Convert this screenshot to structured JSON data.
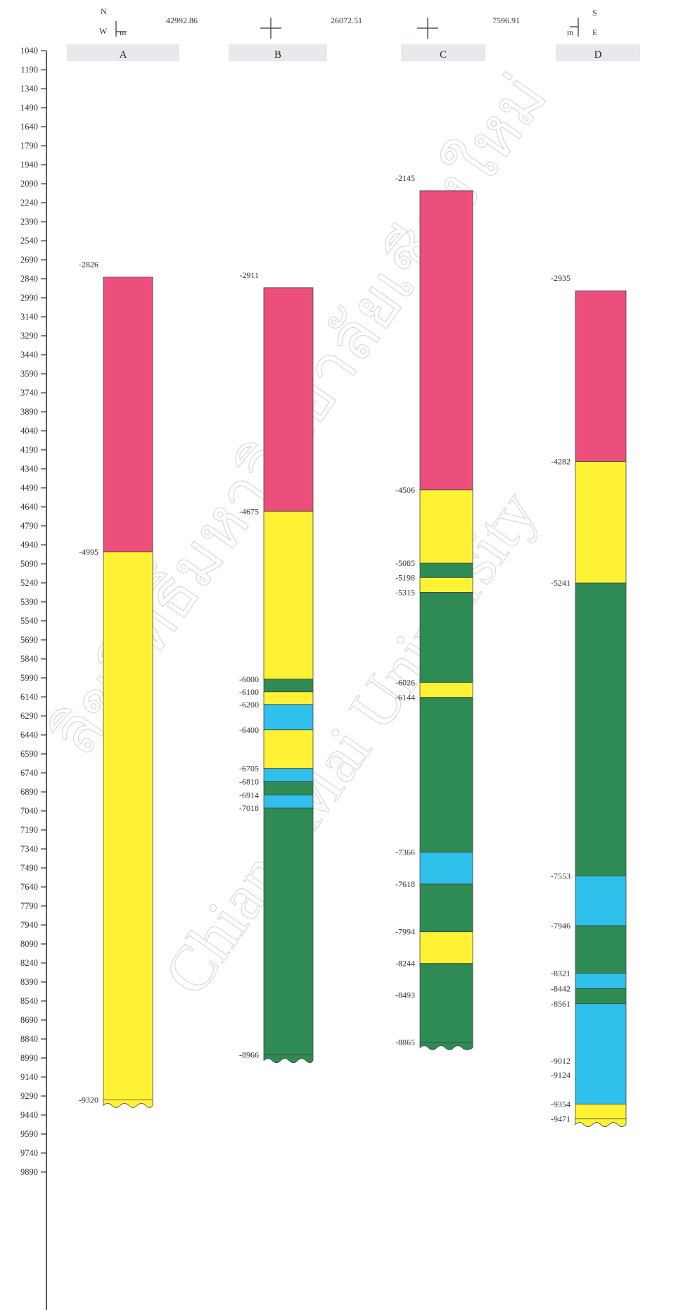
{
  "header": {
    "nw": {
      "n": "N",
      "w": "W",
      "unit": "m"
    },
    "coords": [
      "42992.86",
      "26072.51",
      "7596.91"
    ],
    "se": {
      "s": "S",
      "e": "E",
      "unit": "m"
    }
  },
  "depth_scale": {
    "ticks": [
      "1040",
      "1190",
      "1340",
      "1490",
      "1640",
      "1790",
      "1940",
      "2090",
      "2240",
      "2390",
      "2540",
      "2690",
      "2840",
      "2990",
      "3140",
      "3290",
      "3440",
      "3590",
      "3740",
      "3890",
      "4040",
      "4190",
      "4340",
      "4490",
      "4640",
      "4790",
      "4940",
      "5090",
      "5240",
      "5390",
      "5540",
      "5690",
      "5840",
      "5990",
      "6140",
      "6290",
      "6440",
      "6590",
      "6740",
      "6890",
      "7040",
      "7190",
      "7340",
      "7490",
      "7640",
      "7790",
      "7940",
      "8090",
      "8240",
      "8390",
      "8540",
      "8690",
      "8840",
      "8990",
      "9140",
      "9290",
      "9440",
      "9590",
      "9740",
      "9890"
    ]
  },
  "colors": {
    "pink": "#ec4f7c",
    "yellow": "#fff235",
    "green": "#2e8b53",
    "blue": "#2fc0ec"
  },
  "watermark": {
    "line1": "ลิขสิทธิ์มหาวิทยาลัยเชียงใหม่",
    "line2": "Chiang Mai University"
  },
  "wells": [
    {
      "name": "A",
      "top_label": "-2826",
      "bottom_label": "-9320",
      "segments": [
        {
          "top": 2826,
          "bottom": 4995,
          "color": "pink"
        },
        {
          "top": 4995,
          "bottom": 9320,
          "color": "yellow"
        }
      ],
      "labels": [
        "-4995"
      ]
    },
    {
      "name": "B",
      "top_label": "-2911",
      "bottom_label": "-8966",
      "segments": [
        {
          "top": 2911,
          "bottom": 4675,
          "color": "pink"
        },
        {
          "top": 4675,
          "bottom": 6000,
          "color": "yellow"
        },
        {
          "top": 6000,
          "bottom": 6100,
          "color": "green"
        },
        {
          "top": 6100,
          "bottom": 6200,
          "color": "yellow"
        },
        {
          "top": 6200,
          "bottom": 6400,
          "color": "blue"
        },
        {
          "top": 6400,
          "bottom": 6705,
          "color": "yellow"
        },
        {
          "top": 6705,
          "bottom": 6810,
          "color": "blue"
        },
        {
          "top": 6810,
          "bottom": 6914,
          "color": "green"
        },
        {
          "top": 6914,
          "bottom": 7018,
          "color": "blue"
        },
        {
          "top": 7018,
          "bottom": 8966,
          "color": "green"
        }
      ],
      "labels": [
        "-4675",
        "-6000",
        "-6100",
        "-6200",
        "-6400",
        "-6705",
        "-6810",
        "-6914",
        "-7018"
      ]
    },
    {
      "name": "C",
      "top_label": "-2145",
      "bottom_label": "-8865",
      "segments": [
        {
          "top": 2145,
          "bottom": 4506,
          "color": "pink"
        },
        {
          "top": 4506,
          "bottom": 5085,
          "color": "yellow"
        },
        {
          "top": 5085,
          "bottom": 5198,
          "color": "green"
        },
        {
          "top": 5198,
          "bottom": 5315,
          "color": "yellow"
        },
        {
          "top": 5315,
          "bottom": 6026,
          "color": "green"
        },
        {
          "top": 6026,
          "bottom": 6144,
          "color": "yellow"
        },
        {
          "top": 6144,
          "bottom": 7366,
          "color": "green"
        },
        {
          "top": 7366,
          "bottom": 7618,
          "color": "blue"
        },
        {
          "top": 7618,
          "bottom": 7994,
          "color": "green"
        },
        {
          "top": 7994,
          "bottom": 8244,
          "color": "yellow"
        },
        {
          "top": 8244,
          "bottom": 8865,
          "color": "green"
        }
      ],
      "labels": [
        "-4506",
        "-5085",
        "-5198",
        "-5315",
        "-6026",
        "-6144",
        "-7366",
        "-7618",
        "-7994",
        "-8244",
        "-8493"
      ]
    },
    {
      "name": "D",
      "top_label": "-2935",
      "bottom_label": "-9471",
      "segments": [
        {
          "top": 2935,
          "bottom": 4282,
          "color": "pink"
        },
        {
          "top": 4282,
          "bottom": 5241,
          "color": "yellow"
        },
        {
          "top": 5241,
          "bottom": 7553,
          "color": "green"
        },
        {
          "top": 7553,
          "bottom": 7946,
          "color": "blue"
        },
        {
          "top": 7946,
          "bottom": 8321,
          "color": "green"
        },
        {
          "top": 8321,
          "bottom": 8442,
          "color": "blue"
        },
        {
          "top": 8442,
          "bottom": 8561,
          "color": "green"
        },
        {
          "top": 8561,
          "bottom": 9354,
          "color": "blue"
        },
        {
          "top": 9354,
          "bottom": 9471,
          "color": "yellow"
        }
      ],
      "labels": [
        "-4282",
        "-5241",
        "-7553",
        "-7946",
        "-8321",
        "-8442",
        "-8561",
        "-9012",
        "-9124",
        "-9354"
      ]
    }
  ]
}
